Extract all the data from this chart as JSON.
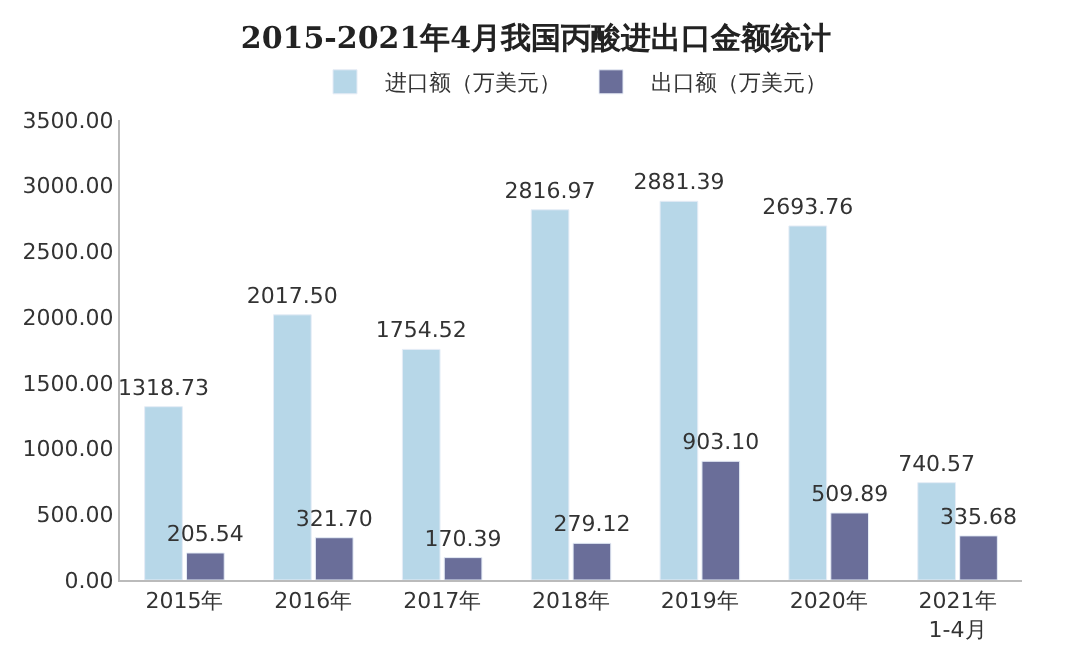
{
  "chart_data": {
    "type": "bar",
    "title": "2015-2021年4月我国丙酸进出口金额统计",
    "categories": [
      "2015年",
      "2016年",
      "2017年",
      "2018年",
      "2019年",
      "2020年",
      "2021年\n1-4月"
    ],
    "series": [
      {
        "name": "进口额（万美元）",
        "color": "#b7d7e8",
        "values": [
          1318.73,
          2017.5,
          1754.52,
          2816.97,
          2881.39,
          2693.76,
          740.57
        ],
        "value_labels": [
          "1318.73",
          "2017.50",
          "1754.52",
          "2816.97",
          "2881.39",
          "2693.76",
          "740.57"
        ]
      },
      {
        "name": "出口额（万美元）",
        "color": "#6a6e99",
        "values": [
          205.54,
          321.7,
          170.39,
          279.12,
          903.1,
          509.89,
          335.68
        ],
        "value_labels": [
          "205.54",
          "321.70",
          "170.39",
          "279.12",
          "903.10",
          "509.89",
          "335.68"
        ]
      }
    ],
    "ylim": [
      0,
      3500
    ],
    "yticks": [
      {
        "value": 0,
        "label": "0.00"
      },
      {
        "value": 500,
        "label": "500.00"
      },
      {
        "value": 1000,
        "label": "1000.00"
      },
      {
        "value": 1500,
        "label": "1500.00"
      },
      {
        "value": 2000,
        "label": "2000.00"
      },
      {
        "value": 2500,
        "label": "2500.00"
      },
      {
        "value": 3000,
        "label": "3000.00"
      },
      {
        "value": 3500,
        "label": "3500.00"
      }
    ],
    "legend": "top"
  }
}
